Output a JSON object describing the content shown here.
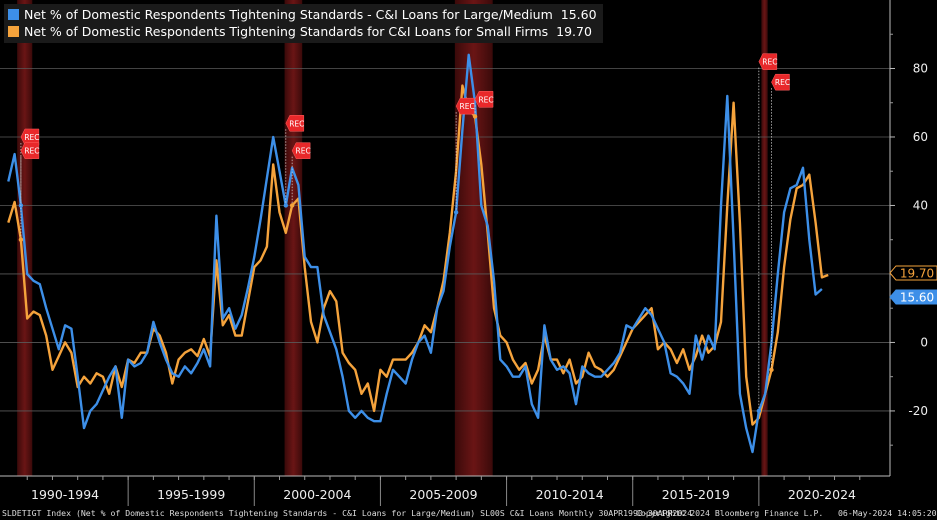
{
  "chart_data": {
    "type": "line",
    "series": [
      {
        "name": "Net % of Domestic Respondents Tightening Standards - C&I Loans for Large/Medium",
        "last_value": "15.60",
        "color": "#3d8fe8",
        "values": [
          47,
          55,
          40,
          20,
          18,
          17,
          10,
          4,
          -2,
          5,
          4,
          -10,
          -25,
          -20,
          -18,
          -14,
          -10,
          -7,
          -22,
          -5,
          -7,
          -6,
          -3,
          6,
          0,
          -5,
          -9,
          -10,
          -7,
          -9,
          -6,
          -2,
          -7,
          37,
          7,
          10,
          4,
          8,
          16,
          25,
          36,
          48,
          60,
          50,
          40,
          51,
          46,
          25,
          22,
          22,
          8,
          3,
          -2,
          -10,
          -20,
          -22,
          -20,
          -22,
          -23,
          -23,
          -15,
          -8,
          -10,
          -12,
          -5,
          0,
          2,
          -3,
          10,
          15,
          28,
          38,
          62,
          84,
          70,
          40,
          34,
          18,
          -5,
          -7,
          -10,
          -10,
          -7,
          -18,
          -22,
          5,
          -5,
          -8,
          -7,
          -9,
          -18,
          -7,
          -9,
          -10,
          -10,
          -8,
          -6,
          -3,
          5,
          4,
          7,
          10,
          8,
          4,
          0,
          -9,
          -10,
          -12,
          -15,
          2,
          -5,
          2,
          -2,
          40,
          72,
          30,
          -15,
          -25,
          -32,
          -20,
          -15,
          0,
          20,
          38,
          45,
          46,
          51,
          30,
          14,
          15.6
        ]
      },
      {
        "name": "Net % of Domestic Respondents Tightening Standards for C&I Loans for Small Firms",
        "last_value": "19.70",
        "color": "#f5a33c",
        "values": [
          35,
          41,
          30,
          7,
          9,
          8,
          2,
          -8,
          -4,
          0,
          -3,
          -13,
          -10,
          -12,
          -9,
          -10,
          -15,
          -7,
          -13,
          -5,
          -6,
          -3,
          -3,
          4,
          2,
          -3,
          -12,
          -5,
          -3,
          -2,
          -4,
          1,
          -4,
          24,
          5,
          8,
          2,
          2,
          12,
          22,
          24,
          28,
          52,
          38,
          32,
          40,
          42,
          22,
          6,
          0,
          10,
          15,
          12,
          -3,
          -6,
          -8,
          -15,
          -12,
          -20,
          -8,
          -10,
          -5,
          -5,
          -5,
          -3,
          0,
          5,
          3,
          10,
          18,
          32,
          50,
          75,
          68,
          66,
          52,
          32,
          10,
          2,
          0,
          -5,
          -8,
          -6,
          -12,
          -8,
          2,
          -5,
          -5,
          -9,
          -5,
          -12,
          -10,
          -3,
          -7,
          -8,
          -10,
          -8,
          -4,
          0,
          4,
          6,
          8,
          10,
          -2,
          0,
          -2,
          -6,
          -2,
          -8,
          -4,
          2,
          -3,
          -1,
          6,
          40,
          70,
          35,
          -10,
          -24,
          -22,
          -15,
          -8,
          3,
          22,
          36,
          45,
          46,
          49,
          35,
          19,
          19.7
        ]
      }
    ],
    "x_start": 1990.25,
    "x_step": 0.25,
    "xlim": [
      1990.0,
      2025.0
    ],
    "ylim": [
      -39,
      100
    ],
    "y_ticks": [
      -20,
      0,
      20,
      40,
      60,
      80
    ],
    "x_period_labels": [
      {
        "label": "1990-1994",
        "start": 1990,
        "end": 1995
      },
      {
        "label": "1995-1999",
        "start": 1995,
        "end": 2000
      },
      {
        "label": "2000-2004",
        "start": 2000,
        "end": 2005
      },
      {
        "label": "2005-2009",
        "start": 2005,
        "end": 2010
      },
      {
        "label": "2010-2014",
        "start": 2010,
        "end": 2015
      },
      {
        "label": "2015-2019",
        "start": 2015,
        "end": 2020
      },
      {
        "label": "2020-2024",
        "start": 2020,
        "end": 2025
      }
    ],
    "recessions": [
      {
        "start": 1990.6,
        "end": 1991.2
      },
      {
        "start": 2001.2,
        "end": 2001.9
      },
      {
        "start": 2007.95,
        "end": 2009.45
      },
      {
        "start": 2020.1,
        "end": 2020.35
      }
    ],
    "rec_flags": [
      {
        "label": "REC",
        "x": 1990.75,
        "y": 60,
        "series": 0
      },
      {
        "label": "REC",
        "x": 1990.75,
        "y": 56,
        "series": 1
      },
      {
        "label": "REC",
        "x": 2001.25,
        "y": 64,
        "series": 0
      },
      {
        "label": "REC",
        "x": 2001.5,
        "y": 56,
        "series": 1
      },
      {
        "label": "REC",
        "x": 2008.0,
        "y": 69,
        "series": 0
      },
      {
        "label": "REC",
        "x": 2008.75,
        "y": 71,
        "series": 1
      },
      {
        "label": "REC",
        "x": 2020.0,
        "y": 82,
        "series": 0
      },
      {
        "label": "REC",
        "x": 2020.5,
        "y": 76,
        "series": 1
      }
    ],
    "grid": true,
    "legend_position": "top-left"
  },
  "footer": {
    "index_desc": "SLDETIGT Index (Net % of Domestic Respondents Tightening Standards - C&I Loans for Large/Medium) SL00S C&I Loans  Monthly 30APR1990-30APR2024",
    "copyright": "Copyright© 2024 Bloomberg Finance L.P.",
    "date": "06-May-2024 14:05:20"
  }
}
